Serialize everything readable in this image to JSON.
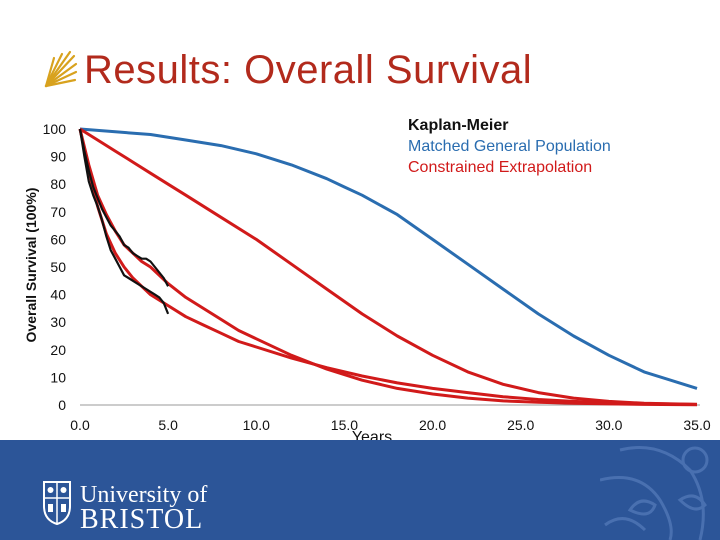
{
  "slide": {
    "title": "Results: Overall Survival",
    "title_color": "#b22a1c",
    "title_icon": "flame-logo-icon"
  },
  "footer": {
    "bg_color": "#2c5598",
    "logo_line1": "University of",
    "logo_line2": "BRISTOL",
    "crest_icon": "university-crest-icon"
  },
  "chart_data": {
    "type": "line",
    "xlabel": "Years",
    "ylabel": "Overall Survival (100%)",
    "xlim": [
      0,
      35
    ],
    "ylim": [
      0,
      100
    ],
    "x_ticks": [
      "0.0",
      "5.0",
      "10.0",
      "15.0",
      "20.0",
      "25.0",
      "30.0",
      "35.0"
    ],
    "y_ticks": [
      "0",
      "10",
      "20",
      "30",
      "40",
      "50",
      "60",
      "70",
      "80",
      "90",
      "100"
    ],
    "legend_position": "top-right",
    "legend": [
      {
        "label": "Kaplan-Meier",
        "color": "#111111"
      },
      {
        "label": "Matched General Population",
        "color": "#2a6db0"
      },
      {
        "label": "Constrained Extrapolation",
        "color": "#d11a1a"
      }
    ],
    "series": [
      {
        "name": "Matched General Population",
        "color": "#2a6db0",
        "x": [
          0,
          2,
          4,
          6,
          8,
          10,
          12,
          14,
          15,
          16,
          18,
          20,
          22,
          24,
          26,
          28,
          30,
          32,
          34,
          35
        ],
        "y": [
          100,
          99,
          98,
          96,
          94,
          91,
          87,
          82,
          79,
          76,
          69,
          60,
          51,
          42,
          33,
          25,
          18,
          12,
          8,
          6
        ]
      },
      {
        "name": "Kaplan-Meier",
        "color": "#111111",
        "x": [
          0,
          0.25,
          0.5,
          0.75,
          1,
          1.25,
          1.5,
          1.75,
          2,
          2.25,
          2.5,
          2.75,
          3,
          3.25,
          3.5,
          3.75,
          4,
          4.25,
          4.5,
          4.75,
          5
        ],
        "y": [
          100,
          92,
          85,
          79,
          75,
          71,
          68,
          65,
          63,
          61,
          58,
          57,
          55,
          54,
          53,
          53,
          52,
          50,
          48,
          46,
          43
        ]
      },
      {
        "name": "Kaplan-Meier",
        "color": "#111111",
        "x": [
          0,
          0.25,
          0.5,
          0.75,
          1,
          1.25,
          1.5,
          1.75,
          2,
          2.25,
          2.5,
          2.75,
          3,
          3.25,
          3.5,
          3.75,
          4,
          4.25,
          4.5,
          4.75,
          5
        ],
        "y": [
          100,
          90,
          81,
          76,
          72,
          67,
          61,
          56,
          53,
          50,
          47,
          46,
          45,
          44,
          43,
          42,
          41,
          40,
          39,
          37,
          33
        ]
      },
      {
        "name": "Constrained Extrapolation",
        "color": "#d11a1a",
        "x": [
          0,
          0.5,
          1,
          1.5,
          2,
          2.5,
          3,
          3.5,
          4,
          4.5,
          5,
          6,
          7,
          8,
          9,
          10,
          12,
          14,
          16,
          18,
          20,
          22,
          24,
          26,
          28,
          30,
          32,
          35
        ],
        "y": [
          100,
          87,
          76,
          69,
          63,
          58,
          55,
          52,
          50,
          47,
          44,
          39,
          35,
          31,
          27,
          24,
          18,
          13,
          9,
          6,
          4,
          2.5,
          1.5,
          1,
          0.6,
          0.4,
          0.2,
          0.1
        ]
      },
      {
        "name": "Constrained Extrapolation",
        "color": "#d11a1a",
        "x": [
          0,
          0.5,
          1,
          1.5,
          2,
          2.5,
          3,
          3.5,
          4,
          4.5,
          5,
          6,
          7,
          8,
          9,
          10,
          12,
          14,
          16,
          18,
          20,
          22,
          24,
          26,
          28,
          30,
          32,
          35
        ],
        "y": [
          100,
          85,
          72,
          62,
          55,
          50,
          46,
          43,
          40,
          38,
          36,
          32,
          29,
          26,
          23,
          21,
          17,
          13.5,
          10.5,
          8,
          6,
          4.5,
          3,
          2,
          1.3,
          0.8,
          0.5,
          0.2
        ]
      },
      {
        "name": "Constrained Extrapolation",
        "color": "#d11a1a",
        "x": [
          0,
          1,
          2,
          3,
          4,
          5,
          6,
          8,
          10,
          12,
          14,
          16,
          18,
          20,
          22,
          24,
          26,
          28,
          30,
          32,
          35
        ],
        "y": [
          100,
          96,
          92,
          88,
          84,
          80,
          76,
          68,
          60,
          51,
          42,
          33,
          25,
          18,
          12,
          7.5,
          4.5,
          2.5,
          1.3,
          0.6,
          0.2
        ]
      }
    ]
  }
}
